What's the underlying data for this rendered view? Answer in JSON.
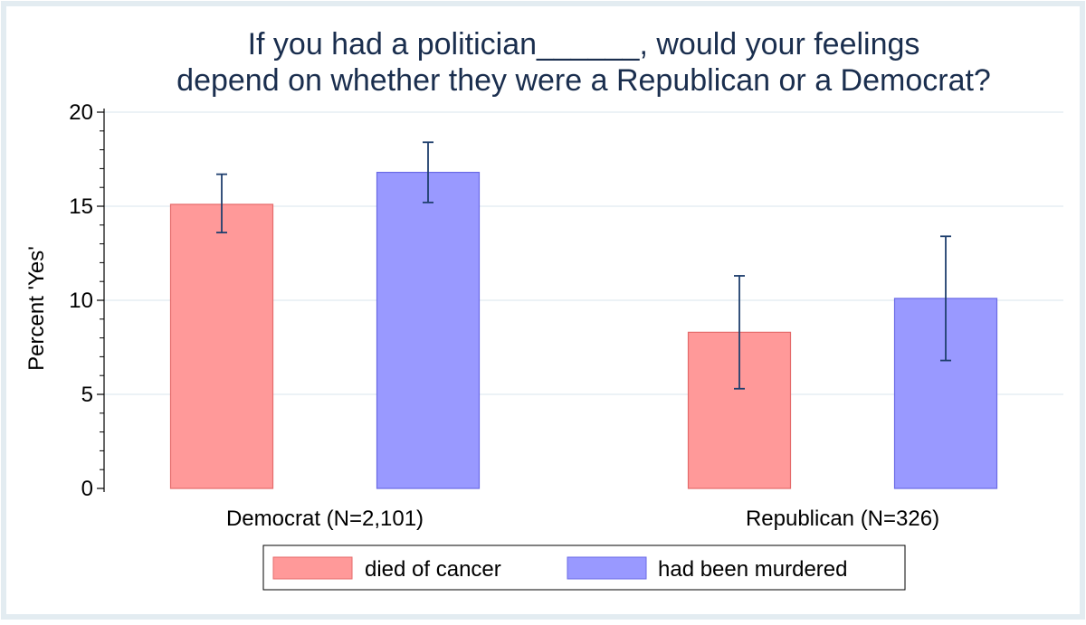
{
  "chart_data": {
    "type": "bar",
    "title": [
      "If you had a politician______, would your feelings",
      "depend on whether they were a Republican or a Democrat?"
    ],
    "xlabel": "",
    "ylabel": "Percent 'Yes'",
    "ylim": [
      0,
      20
    ],
    "yticks": [
      0,
      5,
      10,
      15,
      20
    ],
    "grid": true,
    "categories": [
      "Democrat (N=2,101)",
      "Republican (N=326)"
    ],
    "series": [
      {
        "name": "died of cancer",
        "color": "#ff9999",
        "edge_color": "#e56a6a",
        "values": [
          15.1,
          8.3
        ],
        "ci_low": [
          13.6,
          5.3
        ],
        "ci_high": [
          16.7,
          11.3
        ]
      },
      {
        "name": "had been murdered",
        "color": "#9999ff",
        "edge_color": "#6a6ae5",
        "values": [
          16.8,
          10.1
        ],
        "ci_low": [
          15.2,
          6.8
        ],
        "ci_high": [
          18.4,
          13.4
        ]
      }
    ],
    "errorbar_color": "#1f3f6e",
    "legend_position": "bottom"
  }
}
